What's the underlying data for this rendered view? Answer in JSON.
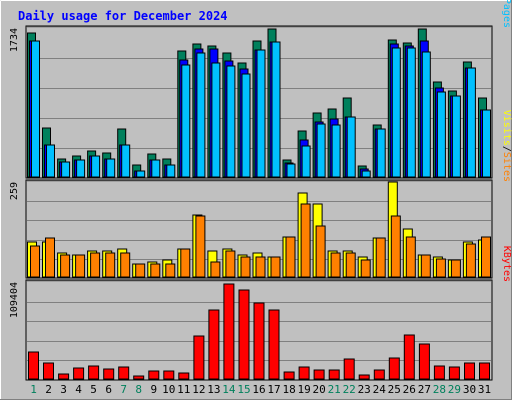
{
  "chart_data": {
    "type": "bar",
    "title": "Daily usage for December 2024",
    "categories": [
      "1",
      "2",
      "3",
      "4",
      "5",
      "6",
      "7",
      "8",
      "9",
      "10",
      "11",
      "12",
      "13",
      "14",
      "15",
      "16",
      "17",
      "18",
      "19",
      "20",
      "21",
      "22",
      "23",
      "24",
      "25",
      "26",
      "27",
      "28",
      "29",
      "30",
      "31"
    ],
    "weekend_days": [
      1,
      7,
      8,
      14,
      15,
      21,
      22,
      28,
      29
    ],
    "colors": {
      "title": "#0000ff",
      "background": "#c0c0c0",
      "grid": "#808080",
      "hits": "#00805c",
      "files": "#0000ff",
      "pages": "#00c0ff",
      "visits": "#ffff00",
      "sites": "#ff8000",
      "kbytes": "#ff0000",
      "weekday_label": "#000000",
      "weekend_label": "#00805c"
    },
    "panels": [
      {
        "id": "hits",
        "max_label": "1734",
        "ymax": 1734,
        "legend": [
          {
            "text": "Pages",
            "color": "#00c0ff"
          },
          {
            "text": "/",
            "color": "#000000"
          },
          {
            "text": "Files",
            "color": "#0000ff"
          },
          {
            "text": "/",
            "color": "#000000"
          },
          {
            "text": "Hits",
            "color": "#00805c"
          }
        ],
        "series": [
          {
            "name": "Hits",
            "color": "#00805c",
            "values": [
              1680,
              570,
              215,
              250,
              305,
              280,
              555,
              140,
              265,
              210,
              1470,
              1550,
              1530,
              1440,
              1330,
              1580,
              1720,
              200,
              540,
              745,
              795,
              925,
              130,
              610,
              1600,
              1560,
              1720,
              1100,
              1000,
              1340,
              920
            ]
          },
          {
            "name": "Files",
            "color": "#0000ff",
            "values": [
              1580,
              370,
              170,
              200,
              250,
              215,
              370,
              70,
              200,
              145,
              1360,
              1490,
              1490,
              1350,
              1260,
              1480,
              1570,
              160,
              430,
              640,
              675,
              700,
              95,
              555,
              1550,
              1530,
              1580,
              1040,
              940,
              1270,
              780
            ]
          },
          {
            "name": "Pages",
            "color": "#00c0ff",
            "values": [
              1580,
              370,
              170,
              200,
              250,
              215,
              370,
              70,
              200,
              145,
              1300,
              1440,
              1330,
              1290,
              1200,
              1480,
              1570,
              150,
              360,
              620,
              600,
              700,
              75,
              555,
              1500,
              1500,
              1460,
              990,
              940,
              1270,
              780
            ]
          }
        ]
      },
      {
        "id": "visits",
        "max_label": "259",
        "ymax": 259,
        "legend": [
          {
            "text": "Sites",
            "color": "#ff8000"
          },
          {
            "text": "/",
            "color": "#000000"
          },
          {
            "text": "Visits",
            "color": "#ffff00"
          }
        ],
        "series": [
          {
            "name": "Visits",
            "color": "#ffff00",
            "values": [
              95,
              95,
              65,
              60,
              70,
              70,
              75,
              35,
              40,
              45,
              75,
              170,
              70,
              75,
              60,
              65,
              55,
              110,
              230,
              200,
              70,
              70,
              55,
              105,
              258,
              130,
              60,
              55,
              45,
              95,
              100
            ]
          },
          {
            "name": "Sites",
            "color": "#ff8000",
            "values": [
              85,
              105,
              60,
              60,
              65,
              65,
              65,
              35,
              35,
              35,
              75,
              165,
              40,
              70,
              55,
              55,
              55,
              110,
              200,
              140,
              65,
              65,
              45,
              105,
              165,
              110,
              60,
              50,
              45,
              90,
              110
            ]
          }
        ]
      },
      {
        "id": "kbytes",
        "max_label": "109404",
        "ymax": 109404,
        "legend": [
          {
            "text": "KBytes",
            "color": "#ff0000"
          }
        ],
        "series": [
          {
            "name": "KBytes",
            "color": "#ff0000",
            "values": [
              30000,
              18500,
              5500,
              12000,
              14500,
              11500,
              14000,
              3500,
              9500,
              8500,
              6500,
              48000,
              78000,
              107000,
              100000,
              86000,
              78000,
              7500,
              14000,
              10500,
              10500,
              23000,
              4000,
              10500,
              23500,
              49500,
              40000,
              14500,
              13500,
              17500,
              17500
            ]
          }
        ]
      }
    ]
  }
}
